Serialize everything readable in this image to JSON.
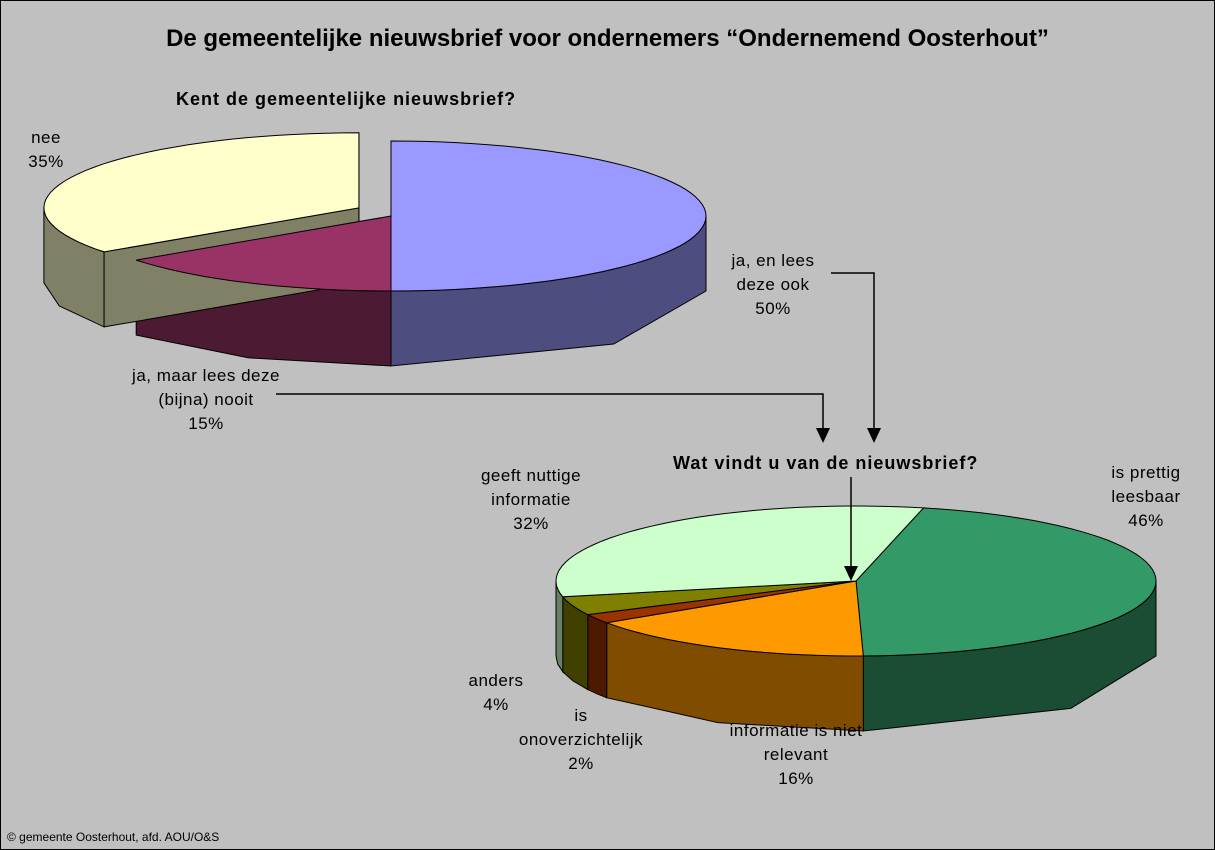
{
  "title": "De gemeentelijke nieuwsbrief voor ondernemers “Ondernemend Oosterhout”",
  "credit": "© gemeente Oosterhout, afd. AOU/O&S",
  "chart_data": [
    {
      "type": "pie",
      "title": "Kent de gemeentelijke nieuwsbrief?",
      "categories": [
        "ja, en lees deze ook",
        "ja, maar lees deze (bijna) nooit",
        "nee"
      ],
      "values": [
        50,
        15,
        35
      ],
      "value_labels": [
        "50%",
        "15%",
        "35%"
      ],
      "colors": [
        "#9999ff",
        "#993366",
        "#ffffcc"
      ]
    },
    {
      "type": "pie",
      "title": "Wat vindt u van de nieuwsbrief?",
      "categories": [
        "is prettig leesbaar",
        "informatie is niet relevant",
        "is onoverzichtelijk",
        "anders",
        "geeft nuttige informatie"
      ],
      "values": [
        46,
        16,
        2,
        4,
        32
      ],
      "value_labels": [
        "46%",
        "16%",
        "2%",
        "4%",
        "32%"
      ],
      "colors": [
        "#339966",
        "#ff9900",
        "#993300",
        "#808000",
        "#ccffcc"
      ]
    }
  ]
}
